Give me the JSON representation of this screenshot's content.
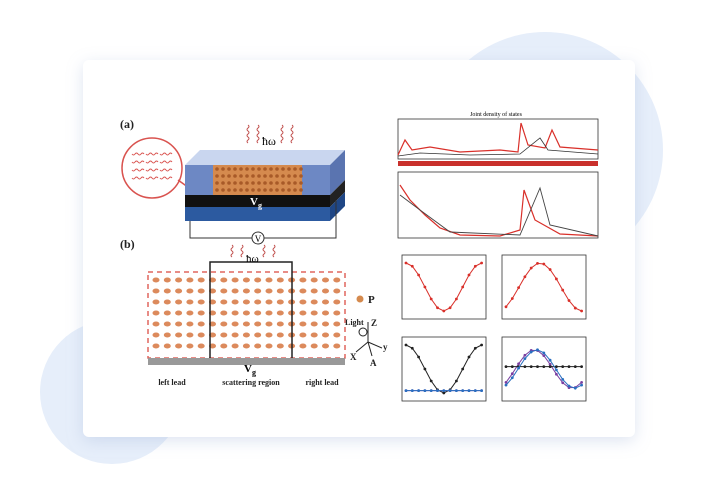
{
  "figure": {
    "panel_a": {
      "label": "(a)",
      "photon": "ħω",
      "gate": {
        "main": "V",
        "sub": "g"
      },
      "bias": "V"
    },
    "panel_b": {
      "label": "(b)",
      "photon": "ħω",
      "particle": "P",
      "gate": {
        "main": "V",
        "sub": "g"
      },
      "light": "Light",
      "axis_z": "Z",
      "axis_x": "X",
      "axis_y": "y",
      "axis_a": "A",
      "regions": [
        "left lead",
        "scattering region",
        "right lead"
      ]
    },
    "plots": {
      "top_title": "Joint density of states"
    }
  }
}
